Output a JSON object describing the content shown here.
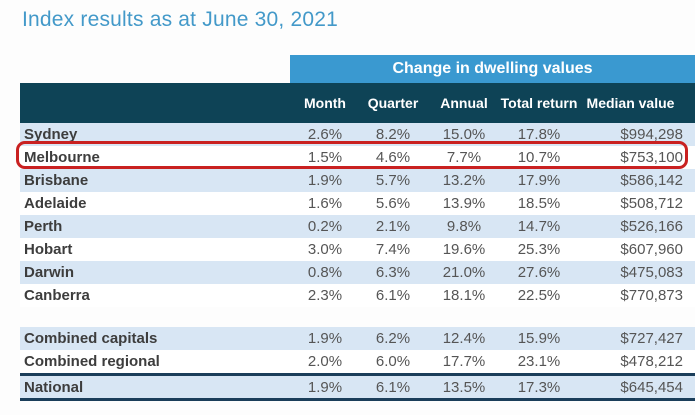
{
  "title": "Index results as at June 30, 2021",
  "table": {
    "group_header": "Change in dwelling values",
    "columns": {
      "month": "Month",
      "quarter": "Quarter",
      "annual": "Annual",
      "total_return": "Total return",
      "median_value": "Median value"
    },
    "rows": [
      {
        "label": "Sydney",
        "month": "2.6%",
        "quarter": "8.2%",
        "annual": "15.0%",
        "total_return": "17.8%",
        "median_value": "$994,298",
        "highlighted": false
      },
      {
        "label": "Melbourne",
        "month": "1.5%",
        "quarter": "4.6%",
        "annual": "7.7%",
        "total_return": "10.7%",
        "median_value": "$753,100",
        "highlighted": true
      },
      {
        "label": "Brisbane",
        "month": "1.9%",
        "quarter": "5.7%",
        "annual": "13.2%",
        "total_return": "17.9%",
        "median_value": "$586,142",
        "highlighted": false
      },
      {
        "label": "Adelaide",
        "month": "1.6%",
        "quarter": "5.6%",
        "annual": "13.9%",
        "total_return": "18.5%",
        "median_value": "$508,712",
        "highlighted": false
      },
      {
        "label": "Perth",
        "month": "0.2%",
        "quarter": "2.1%",
        "annual": "9.8%",
        "total_return": "14.7%",
        "median_value": "$526,166",
        "highlighted": false
      },
      {
        "label": "Hobart",
        "month": "3.0%",
        "quarter": "7.4%",
        "annual": "19.6%",
        "total_return": "25.3%",
        "median_value": "$607,960",
        "highlighted": false
      },
      {
        "label": "Darwin",
        "month": "0.8%",
        "quarter": "6.3%",
        "annual": "21.0%",
        "total_return": "27.6%",
        "median_value": "$475,083",
        "highlighted": false
      },
      {
        "label": "Canberra",
        "month": "2.3%",
        "quarter": "6.1%",
        "annual": "18.1%",
        "total_return": "22.5%",
        "median_value": "$770,873",
        "highlighted": false
      },
      {
        "label": "Combined capitals",
        "month": "1.9%",
        "quarter": "6.2%",
        "annual": "12.4%",
        "total_return": "15.9%",
        "median_value": "$727,427",
        "highlighted": false
      },
      {
        "label": "Combined regional",
        "month": "2.0%",
        "quarter": "6.0%",
        "annual": "17.7%",
        "total_return": "23.1%",
        "median_value": "$478,212",
        "highlighted": false
      },
      {
        "label": "National",
        "month": "1.9%",
        "quarter": "6.1%",
        "annual": "13.5%",
        "total_return": "17.3%",
        "median_value": "$645,454",
        "highlighted": false
      }
    ]
  },
  "colors": {
    "title_text": "#4399c9",
    "group_header_bg": "#3a99d0",
    "header_bg": "#0e4356",
    "stripe_bg": "#d8e6f4",
    "highlight_border": "#c92121",
    "national_rule": "#1b3e5a"
  },
  "chart_data": {
    "type": "table",
    "title": "Index results as at June 30, 2021",
    "group_header": "Change in dwelling values",
    "columns": [
      "Month",
      "Quarter",
      "Annual",
      "Total return",
      "Median value"
    ],
    "rows": [
      {
        "region": "Sydney",
        "month_pct": 2.6,
        "quarter_pct": 8.2,
        "annual_pct": 15.0,
        "total_return_pct": 17.8,
        "median_value": 994298
      },
      {
        "region": "Melbourne",
        "month_pct": 1.5,
        "quarter_pct": 4.6,
        "annual_pct": 7.7,
        "total_return_pct": 10.7,
        "median_value": 753100
      },
      {
        "region": "Brisbane",
        "month_pct": 1.9,
        "quarter_pct": 5.7,
        "annual_pct": 13.2,
        "total_return_pct": 17.9,
        "median_value": 586142
      },
      {
        "region": "Adelaide",
        "month_pct": 1.6,
        "quarter_pct": 5.6,
        "annual_pct": 13.9,
        "total_return_pct": 18.5,
        "median_value": 508712
      },
      {
        "region": "Perth",
        "month_pct": 0.2,
        "quarter_pct": 2.1,
        "annual_pct": 9.8,
        "total_return_pct": 14.7,
        "median_value": 526166
      },
      {
        "region": "Hobart",
        "month_pct": 3.0,
        "quarter_pct": 7.4,
        "annual_pct": 19.6,
        "total_return_pct": 25.3,
        "median_value": 607960
      },
      {
        "region": "Darwin",
        "month_pct": 0.8,
        "quarter_pct": 6.3,
        "annual_pct": 21.0,
        "total_return_pct": 27.6,
        "median_value": 475083
      },
      {
        "region": "Canberra",
        "month_pct": 2.3,
        "quarter_pct": 6.1,
        "annual_pct": 18.1,
        "total_return_pct": 22.5,
        "median_value": 770873
      },
      {
        "region": "Combined capitals",
        "month_pct": 1.9,
        "quarter_pct": 6.2,
        "annual_pct": 12.4,
        "total_return_pct": 15.9,
        "median_value": 727427
      },
      {
        "region": "Combined regional",
        "month_pct": 2.0,
        "quarter_pct": 6.0,
        "annual_pct": 17.7,
        "total_return_pct": 23.1,
        "median_value": 478212
      },
      {
        "region": "National",
        "month_pct": 1.9,
        "quarter_pct": 6.1,
        "annual_pct": 13.5,
        "total_return_pct": 17.3,
        "median_value": 645454
      }
    ],
    "annotations": [
      "Melbourne row outlined with red rounded rectangle"
    ]
  }
}
